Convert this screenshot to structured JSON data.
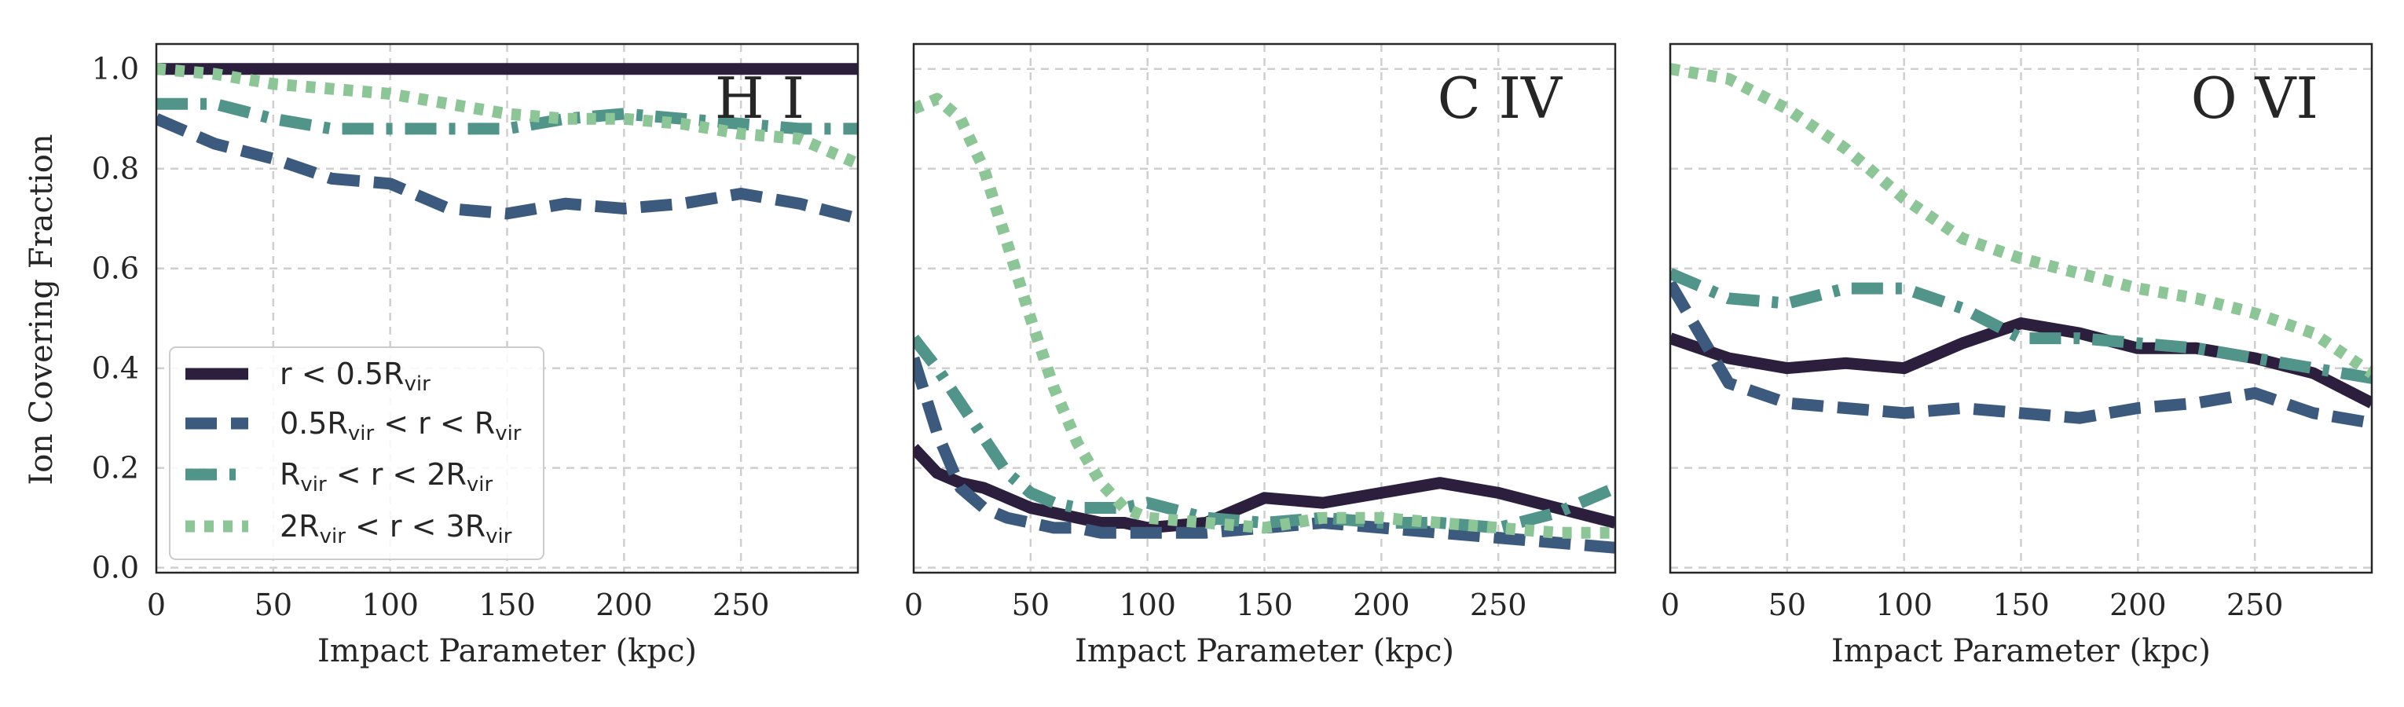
{
  "figure": {
    "ylabel": "Ion Covering Fraction",
    "xlabel": "Impact Parameter (kpc)"
  },
  "legend": {
    "entries": [
      {
        "key": "s1",
        "pre": "r < 0.5R",
        "sub": "vir",
        "post": ""
      },
      {
        "key": "s2",
        "pre": "0.5R",
        "sub": "vir",
        "post": " < r < R",
        "sub2": "vir"
      },
      {
        "key": "s3",
        "pre": "R",
        "sub": "vir",
        "post": " < r < 2R",
        "sub2": "vir"
      },
      {
        "key": "s4",
        "pre": "2R",
        "sub": "vir",
        "post": " < r < 3R",
        "sub2": "vir"
      }
    ]
  },
  "styles": {
    "s1": {
      "color": "#2c1e3d",
      "dash": "solid"
    },
    "s2": {
      "color": "#3b5a7e",
      "dash": "dashed"
    },
    "s3": {
      "color": "#50948a",
      "dash": "dashdot"
    },
    "s4": {
      "color": "#8cc596",
      "dash": "dotted"
    }
  },
  "chart_data": [
    {
      "type": "line",
      "title": "H I",
      "xlabel": "Impact Parameter (kpc)",
      "ylabel": "Ion Covering Fraction",
      "xlim": [
        0,
        300
      ],
      "ylim": [
        -0.01,
        1.05
      ],
      "xticks": [
        "0",
        "50",
        "100",
        "150",
        "200",
        "250"
      ],
      "yticks": [
        "0.0",
        "0.2",
        "0.4",
        "0.6",
        "0.8",
        "1.0"
      ],
      "grid": true,
      "legend": "lower-left",
      "x": [
        0,
        25,
        50,
        75,
        100,
        125,
        150,
        175,
        200,
        225,
        250,
        275,
        300
      ],
      "series": [
        {
          "key": "s1",
          "name": "r < 0.5Rvir",
          "values": [
            1.0,
            1.0,
            1.0,
            1.0,
            1.0,
            1.0,
            1.0,
            1.0,
            1.0,
            1.0,
            1.0,
            1.0,
            1.0
          ]
        },
        {
          "key": "s2",
          "name": "0.5Rvir < r < Rvir",
          "values": [
            0.9,
            0.85,
            0.82,
            0.78,
            0.77,
            0.72,
            0.71,
            0.73,
            0.72,
            0.73,
            0.75,
            0.73,
            0.7
          ]
        },
        {
          "key": "s3",
          "name": "Rvir < r < 2Rvir",
          "values": [
            0.93,
            0.93,
            0.9,
            0.88,
            0.88,
            0.88,
            0.88,
            0.9,
            0.91,
            0.9,
            0.89,
            0.88,
            0.88
          ]
        },
        {
          "key": "s4",
          "name": "2Rvir < r < 3Rvir",
          "values": [
            1.0,
            0.99,
            0.97,
            0.96,
            0.95,
            0.93,
            0.91,
            0.9,
            0.9,
            0.89,
            0.87,
            0.86,
            0.81
          ]
        }
      ]
    },
    {
      "type": "line",
      "title": "C IV",
      "xlabel": "Impact Parameter (kpc)",
      "xlim": [
        0,
        300
      ],
      "ylim": [
        -0.01,
        1.05
      ],
      "xticks": [
        "0",
        "50",
        "100",
        "150",
        "200",
        "250"
      ],
      "grid": true,
      "x": [
        0,
        10,
        20,
        30,
        40,
        50,
        60,
        70,
        80,
        90,
        100,
        125,
        150,
        175,
        200,
        225,
        250,
        275,
        300
      ],
      "series": [
        {
          "key": "s1",
          "values": [
            0.24,
            0.19,
            0.17,
            0.16,
            0.14,
            0.12,
            0.11,
            0.1,
            0.09,
            0.09,
            0.08,
            0.09,
            0.14,
            0.13,
            0.15,
            0.17,
            0.15,
            0.12,
            0.09
          ]
        },
        {
          "key": "s2",
          "values": [
            0.42,
            0.27,
            0.16,
            0.12,
            0.1,
            0.09,
            0.08,
            0.08,
            0.07,
            0.07,
            0.07,
            0.07,
            0.08,
            0.09,
            0.08,
            0.07,
            0.06,
            0.05,
            0.04
          ]
        },
        {
          "key": "s3",
          "values": [
            0.46,
            0.4,
            0.33,
            0.26,
            0.19,
            0.15,
            0.13,
            0.12,
            0.12,
            0.12,
            0.13,
            0.1,
            0.09,
            0.1,
            0.09,
            0.09,
            0.08,
            0.11,
            0.16
          ]
        },
        {
          "key": "s4",
          "values": [
            0.92,
            0.94,
            0.9,
            0.8,
            0.65,
            0.5,
            0.36,
            0.25,
            0.17,
            0.12,
            0.1,
            0.09,
            0.08,
            0.1,
            0.1,
            0.09,
            0.08,
            0.07,
            0.07
          ]
        }
      ]
    },
    {
      "type": "line",
      "title": "O VI",
      "xlabel": "Impact Parameter (kpc)",
      "xlim": [
        0,
        300
      ],
      "ylim": [
        -0.01,
        1.05
      ],
      "xticks": [
        "0",
        "50",
        "100",
        "150",
        "200",
        "250"
      ],
      "grid": true,
      "x": [
        0,
        25,
        50,
        75,
        100,
        125,
        150,
        175,
        200,
        225,
        250,
        275,
        300
      ],
      "series": [
        {
          "key": "s1",
          "values": [
            0.46,
            0.42,
            0.4,
            0.41,
            0.4,
            0.45,
            0.49,
            0.47,
            0.44,
            0.44,
            0.42,
            0.39,
            0.33
          ]
        },
        {
          "key": "s2",
          "values": [
            0.57,
            0.37,
            0.33,
            0.32,
            0.31,
            0.32,
            0.31,
            0.3,
            0.32,
            0.33,
            0.35,
            0.31,
            0.29
          ]
        },
        {
          "key": "s3",
          "values": [
            0.59,
            0.54,
            0.53,
            0.56,
            0.56,
            0.52,
            0.46,
            0.46,
            0.45,
            0.44,
            0.42,
            0.4,
            0.38
          ]
        },
        {
          "key": "s4",
          "values": [
            1.0,
            0.98,
            0.92,
            0.84,
            0.74,
            0.66,
            0.62,
            0.59,
            0.56,
            0.54,
            0.51,
            0.47,
            0.39
          ]
        }
      ]
    }
  ]
}
